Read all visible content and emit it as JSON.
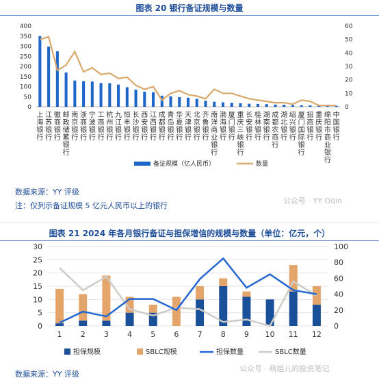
{
  "figure1": {
    "title": "图表 20 银行备证规模与数量",
    "source": "数据来源：YY 评级",
    "note": "注：仅列示备证规模 5 亿元人民币以上的银行"
  },
  "figure2": {
    "title": "图表 21 2024 年各月银行备证与担保增信的规模与数量（单位：亿元，个）",
    "source": "数据来源：YY 评级"
  },
  "watermark": {
    "top": "公众号 · YY Odin",
    "bottom": "公众号 · 萌姐儿的投资笔记"
  },
  "chart_data": [
    {
      "type": "bar",
      "title": "图表 20 银行备证规模与数量",
      "categories": [
        "上海银行",
        "江苏银行",
        "徽商银行",
        "邮政储蓄银行",
        "南京银行",
        "浙商银行",
        "宁波银行",
        "工商银行",
        "杭州银行",
        "九江银行",
        "恒丰银行",
        "长沙银行",
        "西安银行",
        "江西银行",
        "成都银行",
        "青岛银行",
        "华夏银行",
        "天津银行",
        "北京银行",
        "齐鲁银行",
        "南洋商业银行",
        "渤海银行",
        "厦门银行",
        "重庆三峡银行",
        "长安银行",
        "桂林银行",
        "湖南银行",
        "成都农商行",
        "湖北银行",
        "绍兴银行",
        "厦门国际银行",
        "招商银行",
        "重庆银行",
        "绵阳市商业银行",
        "中国银行"
      ],
      "series": [
        {
          "name": "备证规模（亿人民币）",
          "axis": "left",
          "type": "bar",
          "values": [
            350,
            298,
            275,
            170,
            130,
            127,
            125,
            118,
            117,
            110,
            97,
            85,
            75,
            72,
            55,
            52,
            48,
            45,
            40,
            30,
            25,
            22,
            20,
            18,
            15,
            14,
            13,
            11,
            10,
            9,
            8,
            7,
            6,
            5,
            5
          ]
        },
        {
          "name": "数量",
          "axis": "right",
          "type": "line",
          "values": [
            50,
            52,
            27,
            31,
            41,
            26,
            29,
            24,
            25,
            21,
            22,
            16,
            13,
            15,
            5,
            10,
            12,
            9,
            8,
            6,
            13,
            10,
            10,
            8,
            6,
            5,
            4,
            3,
            3,
            2,
            5,
            4,
            1,
            1,
            1
          ]
        }
      ],
      "ylim_left": [
        0,
        400
      ],
      "yticks_left": [
        0,
        50,
        100,
        150,
        200,
        250,
        300,
        350,
        400
      ],
      "ylim_right": [
        0,
        60
      ],
      "yticks_right": [
        0,
        10,
        20,
        30,
        40,
        50,
        60
      ],
      "legend": "bottom",
      "colors": {
        "bar": "#1f66c9",
        "line": "#d9a86a"
      }
    },
    {
      "type": "bar",
      "title": "图表 21 2024 年各月银行备证与担保增信的规模与数量（单位：亿元，个）",
      "categories": [
        "1",
        "2",
        "3",
        "4",
        "5",
        "6",
        "7",
        "8",
        "9",
        "10",
        "11",
        "12"
      ],
      "stacked": true,
      "series": [
        {
          "name": "担保规模",
          "axis": "left",
          "type": "bar",
          "values": [
            1,
            2,
            2,
            5,
            5,
            0,
            10,
            15,
            11,
            10,
            13,
            8
          ]
        },
        {
          "name": "SBLC规模",
          "axis": "left",
          "type": "bar",
          "values": [
            13,
            10,
            17,
            6,
            3,
            11,
            5,
            3,
            2,
            0,
            10,
            7
          ]
        },
        {
          "name": "担保数量",
          "axis": "right",
          "type": "line",
          "values": [
            4,
            18,
            12,
            34,
            34,
            20,
            59,
            85,
            48,
            65,
            45,
            40
          ]
        },
        {
          "name": "SBLC数量",
          "axis": "right",
          "type": "line",
          "values": [
            73,
            45,
            62,
            21,
            13,
            23,
            21,
            5,
            8,
            0,
            56,
            38
          ]
        }
      ],
      "ylim_left": [
        0,
        30
      ],
      "yticks_left": [
        0,
        5,
        10,
        15,
        20,
        25,
        30
      ],
      "ylim_right": [
        0,
        100
      ],
      "yticks_right": [
        0,
        20,
        40,
        60,
        80,
        100
      ],
      "legend": "bottom",
      "colors": {
        "guarantee_bar": "#1a4f9a",
        "sblc_bar": "#e4a56a",
        "guarantee_line": "#2366d1",
        "sblc_line": "#cfccc8"
      }
    }
  ]
}
